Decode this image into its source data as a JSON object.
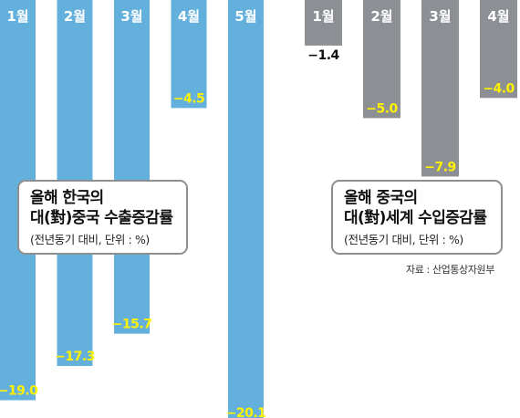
{
  "chart_data": [
    {
      "type": "bar",
      "title_line1": "올해 한국의",
      "title_line2": "대(對)중국 수출증감률",
      "note": "(전년동기 대비, 단위 : %)",
      "categories": [
        "1월",
        "2월",
        "3월",
        "4월",
        "5월"
      ],
      "series": [
        {
          "values": [
            -19.0,
            -17.3,
            -15.7,
            -4.5,
            -20.1
          ],
          "color": "#64b0dc"
        }
      ],
      "value_labels": [
        "−19.0",
        "−17.3",
        "−15.7",
        "−4.5",
        "−20.1"
      ],
      "ylim": [
        -21,
        0
      ]
    },
    {
      "type": "bar",
      "title_line1": "올해 중국의",
      "title_line2": "대(對)세계 수입증감률",
      "note": "(전년동기 대비, 단위 : %)",
      "categories": [
        "1월",
        "2월",
        "3월",
        "4월"
      ],
      "series": [
        {
          "values": [
            -1.4,
            -5.0,
            -7.9,
            -4.0
          ],
          "color": "#8c8f94"
        }
      ],
      "value_labels": [
        "−1.4",
        "−5.0",
        "−7.9",
        "−4.0"
      ],
      "ylim": [
        -21,
        0
      ]
    }
  ],
  "source": "자료 : 산업통상자원부"
}
